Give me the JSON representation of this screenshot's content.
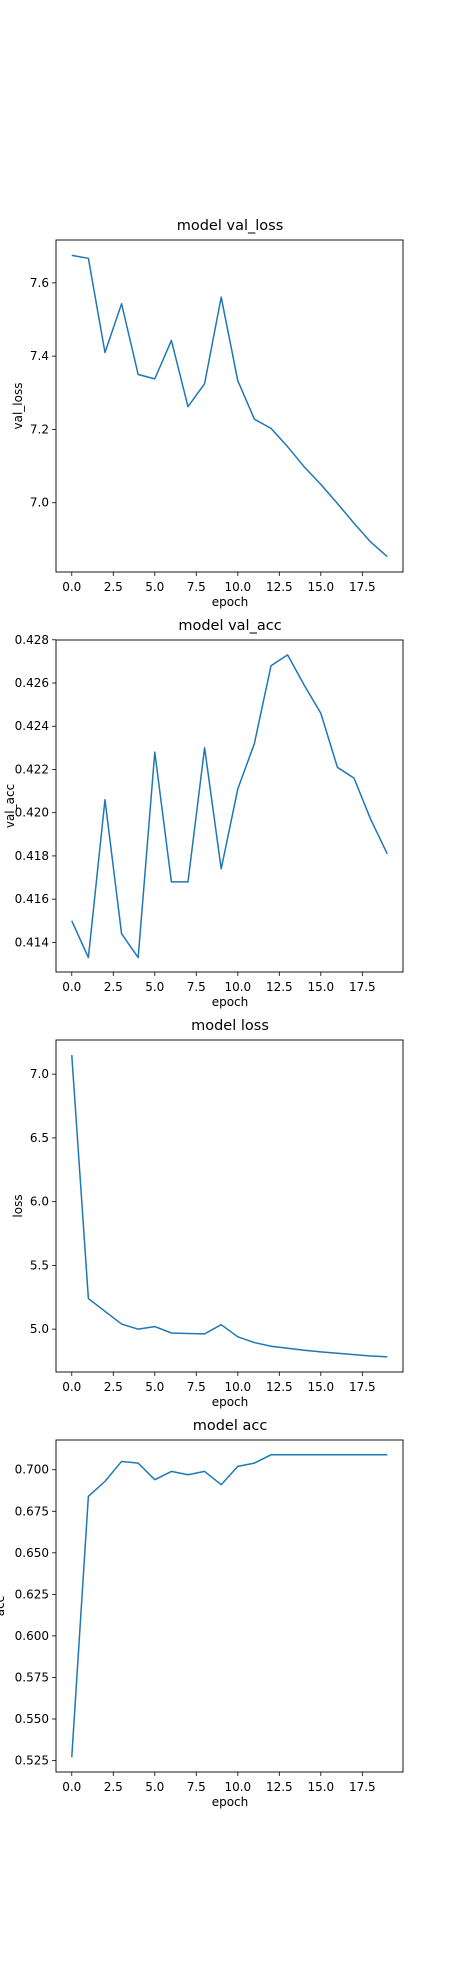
{
  "chart_data": [
    {
      "type": "line",
      "title": "model val_loss",
      "xlabel": "epoch",
      "ylabel": "val_loss",
      "x": [
        0,
        1,
        2,
        3,
        4,
        5,
        6,
        7,
        8,
        9,
        10,
        11,
        12,
        13,
        14,
        15,
        16,
        17,
        18,
        19
      ],
      "y": [
        7.675,
        7.667,
        7.41,
        7.543,
        7.35,
        7.338,
        7.443,
        7.262,
        7.325,
        7.561,
        7.333,
        7.228,
        7.203,
        7.153,
        7.098,
        7.05,
        6.998,
        6.944,
        6.893,
        6.853
      ],
      "xlim": [
        -0.95,
        19.95
      ],
      "ylim": [
        6.811,
        7.717
      ],
      "xticks": [
        0.0,
        2.5,
        5.0,
        7.5,
        10.0,
        12.5,
        15.0,
        17.5
      ],
      "xtick_labels": [
        "0.0",
        "2.5",
        "5.0",
        "7.5",
        "10.0",
        "12.5",
        "15.0",
        "17.5"
      ],
      "yticks": [
        7.0,
        7.2,
        7.4,
        7.6
      ],
      "ytick_labels": [
        "7.0",
        "7.2",
        "7.4",
        "7.6"
      ],
      "series_color": "#1f77b4",
      "grid": false,
      "legend": "none"
    },
    {
      "type": "line",
      "title": "model val_acc",
      "xlabel": "epoch",
      "ylabel": "val_acc",
      "x": [
        0,
        1,
        2,
        3,
        4,
        5,
        6,
        7,
        8,
        9,
        10,
        11,
        12,
        13,
        14,
        15,
        16,
        17,
        18,
        19
      ],
      "y": [
        0.415,
        0.4133,
        0.4206,
        0.4144,
        0.4133,
        0.4228,
        0.4168,
        0.4168,
        0.423,
        0.4174,
        0.4211,
        0.4232,
        0.4268,
        0.4273,
        0.4259,
        0.4246,
        0.4221,
        0.4216,
        0.4197,
        0.4181
      ],
      "xlim": [
        -0.95,
        19.95
      ],
      "ylim": [
        0.41263,
        0.42799
      ],
      "xticks": [
        0.0,
        2.5,
        5.0,
        7.5,
        10.0,
        12.5,
        15.0,
        17.5
      ],
      "xtick_labels": [
        "0.0",
        "2.5",
        "5.0",
        "7.5",
        "10.0",
        "12.5",
        "15.0",
        "17.5"
      ],
      "yticks": [
        0.414,
        0.416,
        0.418,
        0.42,
        0.422,
        0.424,
        0.426,
        0.428
      ],
      "ytick_labels": [
        "0.414",
        "0.416",
        "0.418",
        "0.420",
        "0.422",
        "0.424",
        "0.426",
        "0.428"
      ],
      "series_color": "#1f77b4",
      "grid": false,
      "legend": "none"
    },
    {
      "type": "line",
      "title": "model loss",
      "xlabel": "epoch",
      "ylabel": "loss",
      "x": [
        0,
        1,
        2,
        3,
        4,
        5,
        6,
        7,
        8,
        9,
        10,
        11,
        12,
        13,
        14,
        15,
        16,
        17,
        18,
        19
      ],
      "y": [
        7.15,
        5.24,
        5.14,
        5.04,
        5.0,
        5.02,
        4.97,
        4.966,
        4.963,
        5.035,
        4.94,
        4.895,
        4.866,
        4.85,
        4.835,
        4.822,
        4.811,
        4.8,
        4.79,
        4.783
      ],
      "xlim": [
        -0.95,
        19.95
      ],
      "ylim": [
        4.664,
        7.268
      ],
      "xticks": [
        0.0,
        2.5,
        5.0,
        7.5,
        10.0,
        12.5,
        15.0,
        17.5
      ],
      "xtick_labels": [
        "0.0",
        "2.5",
        "5.0",
        "7.5",
        "10.0",
        "12.5",
        "15.0",
        "17.5"
      ],
      "yticks": [
        5.0,
        5.5,
        6.0,
        6.5,
        7.0
      ],
      "ytick_labels": [
        "5.0",
        "5.5",
        "6.0",
        "6.5",
        "7.0"
      ],
      "series_color": "#1f77b4",
      "grid": false,
      "legend": "none"
    },
    {
      "type": "line",
      "title": "model acc",
      "xlabel": "epoch",
      "ylabel": "acc",
      "x": [
        0,
        1,
        2,
        3,
        4,
        5,
        6,
        7,
        8,
        9,
        10,
        11,
        12,
        13,
        14,
        15,
        16,
        17,
        18,
        19
      ],
      "y": [
        0.527,
        0.684,
        0.693,
        0.705,
        0.704,
        0.694,
        0.699,
        0.697,
        0.699,
        0.691,
        0.702,
        0.704,
        0.709,
        0.709,
        0.709,
        0.709,
        0.709,
        0.709,
        0.709,
        0.709
      ],
      "xlim": [
        -0.95,
        19.95
      ],
      "ylim": [
        0.5181,
        0.7179
      ],
      "xticks": [
        0.0,
        2.5,
        5.0,
        7.5,
        10.0,
        12.5,
        15.0,
        17.5
      ],
      "xtick_labels": [
        "0.0",
        "2.5",
        "5.0",
        "7.5",
        "10.0",
        "12.5",
        "15.0",
        "17.5"
      ],
      "yticks": [
        0.525,
        0.55,
        0.575,
        0.6,
        0.625,
        0.65,
        0.675,
        0.7
      ],
      "ytick_labels": [
        "0.525",
        "0.550",
        "0.575",
        "0.600",
        "0.625",
        "0.650",
        "0.675",
        "0.700"
      ],
      "series_color": "#1f77b4",
      "grid": false,
      "legend": "none"
    }
  ]
}
